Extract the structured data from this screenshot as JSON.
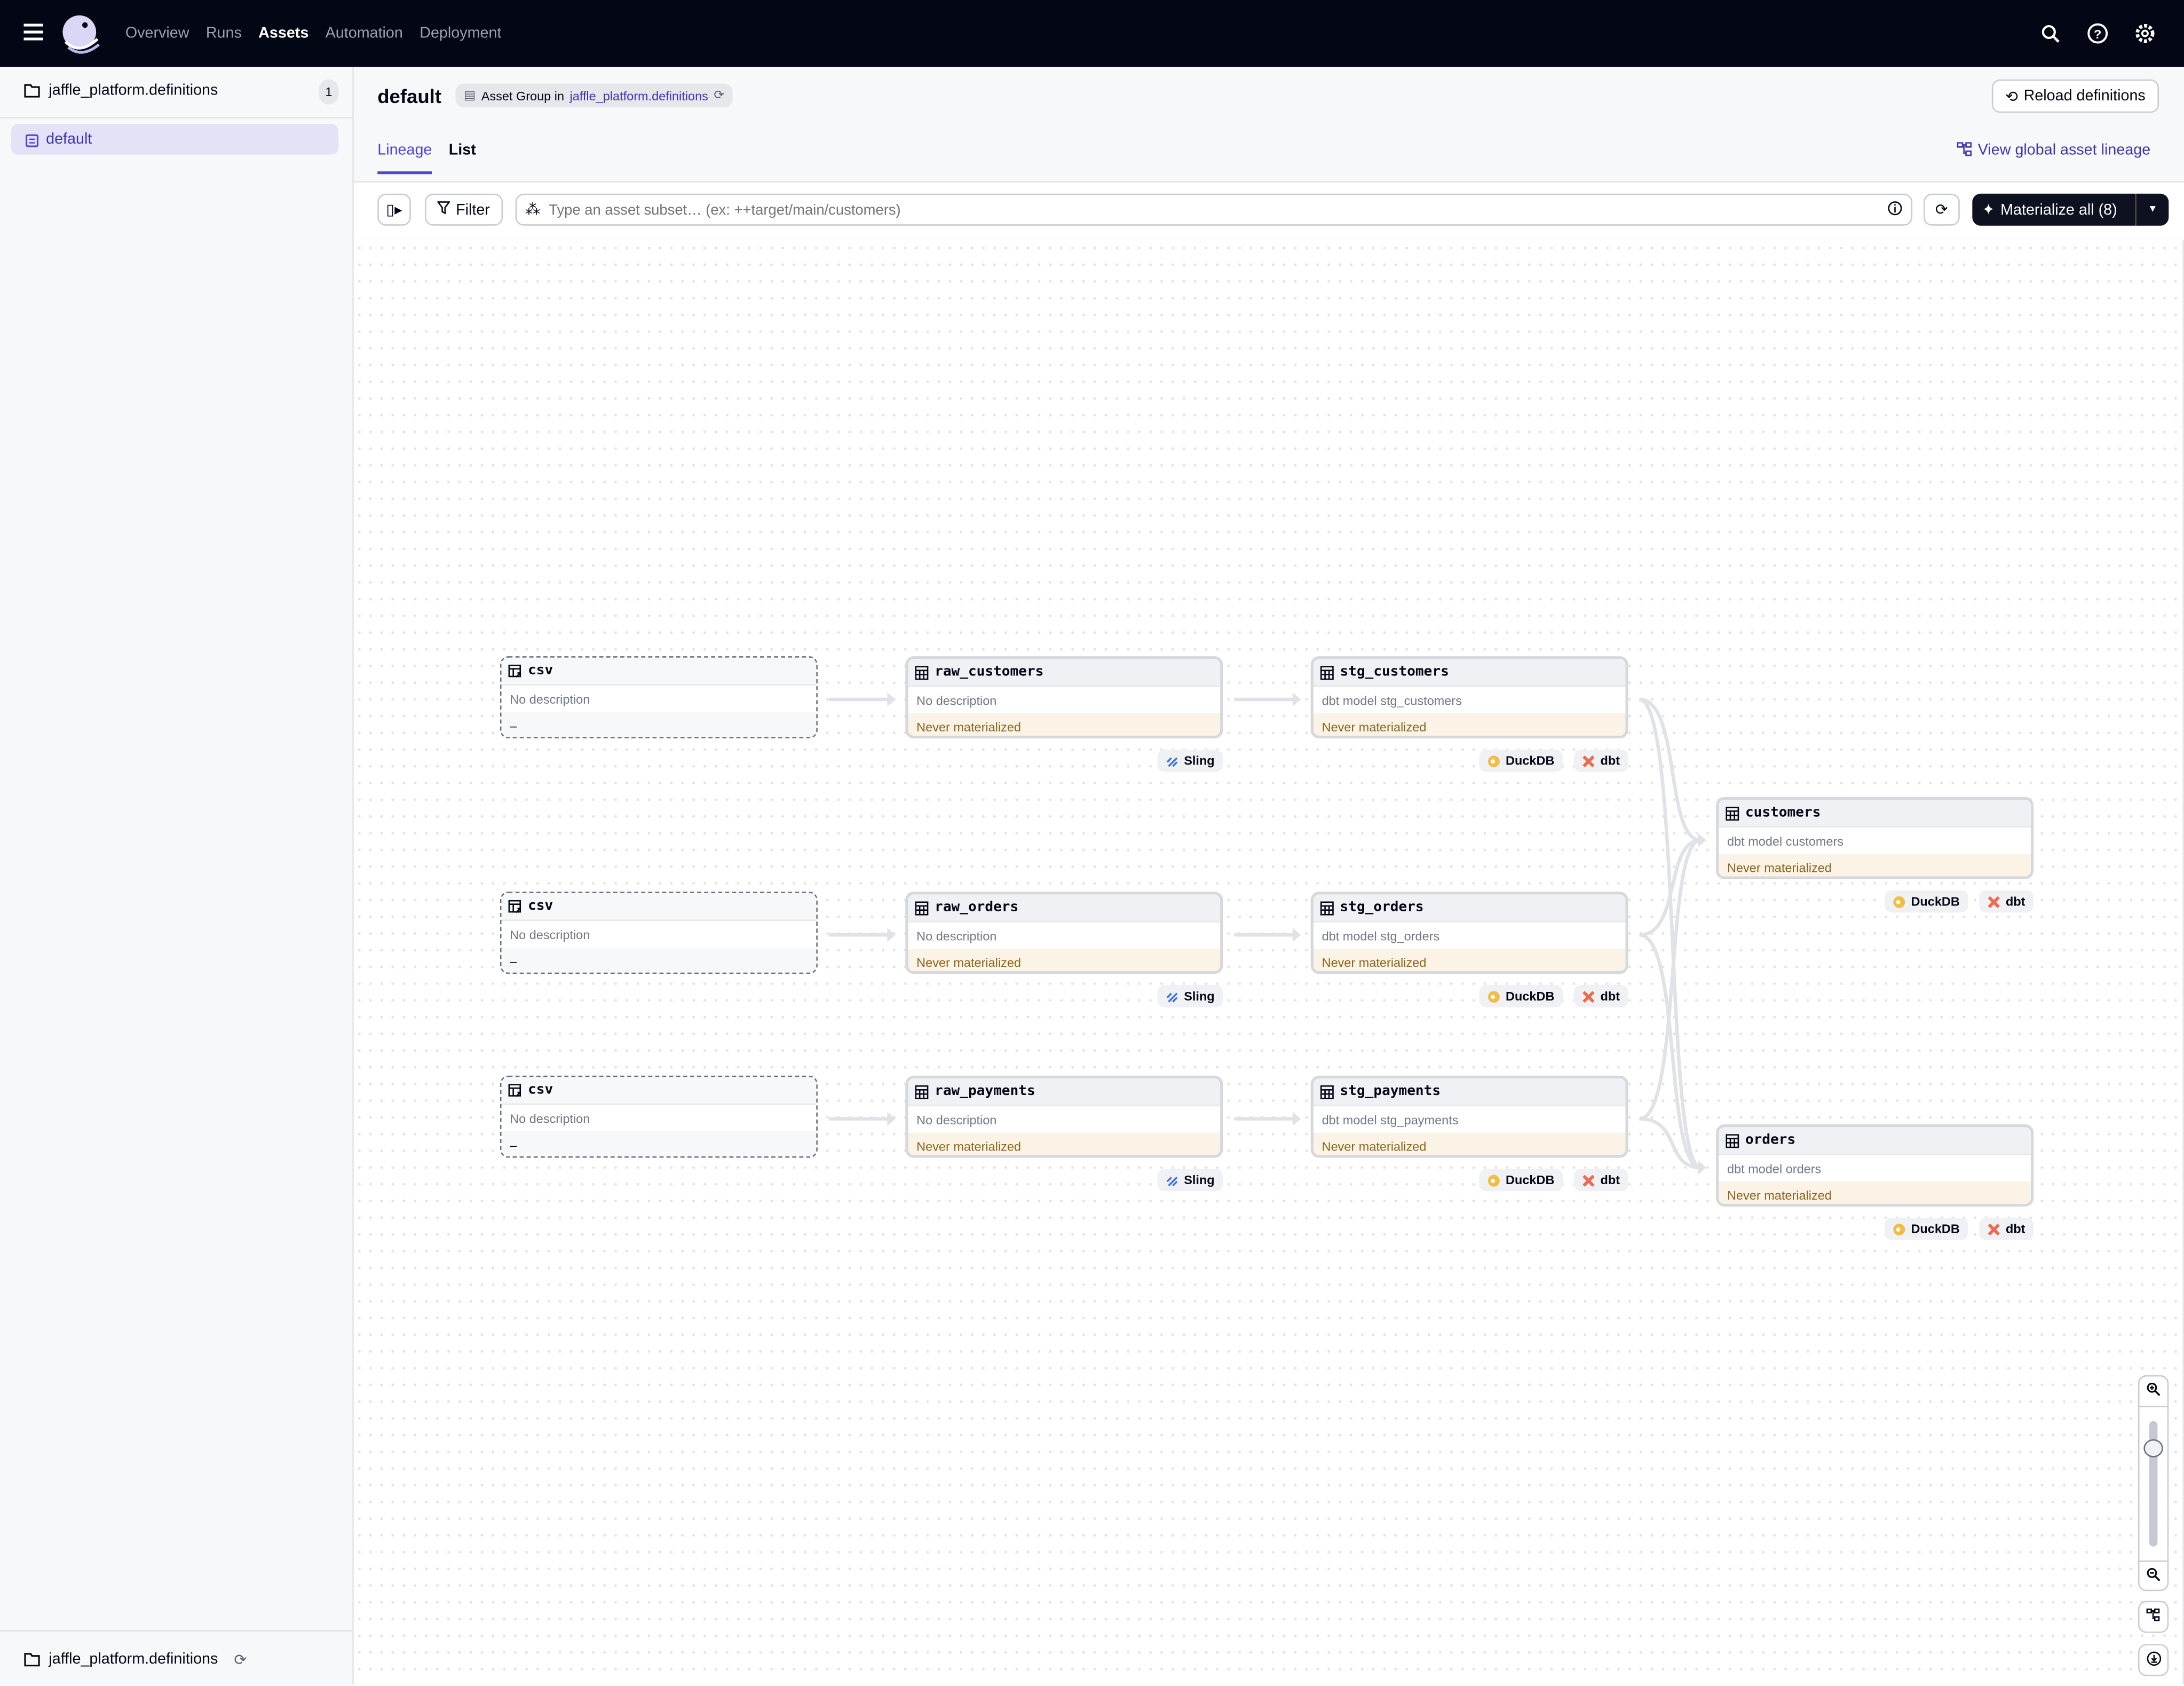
{
  "topbar": {
    "nav": [
      {
        "label": "Overview",
        "active": false
      },
      {
        "label": "Runs",
        "active": false
      },
      {
        "label": "Assets",
        "active": true
      },
      {
        "label": "Automation",
        "active": false
      },
      {
        "label": "Deployment",
        "active": false
      }
    ]
  },
  "sidebar": {
    "location_name": "jaffle_platform.definitions",
    "location_count": "1",
    "groups": [
      {
        "label": "default",
        "selected": true
      }
    ],
    "footer_location": "jaffle_platform.definitions"
  },
  "header": {
    "title": "default",
    "badge_prefix": "Asset Group in",
    "badge_link": "jaffle_platform.definitions",
    "reload_label": "Reload definitions",
    "tabs": [
      {
        "label": "Lineage",
        "active": true
      },
      {
        "label": "List",
        "active": false
      }
    ],
    "global_lineage_label": "View global asset lineage"
  },
  "toolbar": {
    "filter_label": "Filter",
    "search_placeholder": "Type an asset subset… (ex: ++target/main/customers)",
    "materialize_label": "Materialize all (8)"
  },
  "colors": {
    "accent": "#4f43dd",
    "topbar": "#030615",
    "never_materialized": "#8a6520",
    "duckdb": "#f2bd45",
    "dbt": "#ec6b4f",
    "sling": "#3b6ee8"
  },
  "graph": {
    "nodes": [
      {
        "id": "csv1",
        "name": "csv",
        "description": "No description",
        "status": "–",
        "kind": "source",
        "badges": []
      },
      {
        "id": "csv2",
        "name": "csv",
        "description": "No description",
        "status": "–",
        "kind": "source",
        "badges": []
      },
      {
        "id": "csv3",
        "name": "csv",
        "description": "No description",
        "status": "–",
        "kind": "source",
        "badges": []
      },
      {
        "id": "raw_customers",
        "name": "raw_customers",
        "description": "No description",
        "status": "Never materialized",
        "kind": "asset",
        "badges": [
          "Sling"
        ]
      },
      {
        "id": "raw_orders",
        "name": "raw_orders",
        "description": "No description",
        "status": "Never materialized",
        "kind": "asset",
        "badges": [
          "Sling"
        ]
      },
      {
        "id": "raw_payments",
        "name": "raw_payments",
        "description": "No description",
        "status": "Never materialized",
        "kind": "asset",
        "badges": [
          "Sling"
        ]
      },
      {
        "id": "stg_customers",
        "name": "stg_customers",
        "description": "dbt model stg_customers",
        "status": "Never materialized",
        "kind": "asset",
        "badges": [
          "DuckDB",
          "dbt"
        ]
      },
      {
        "id": "stg_orders",
        "name": "stg_orders",
        "description": "dbt model stg_orders",
        "status": "Never materialized",
        "kind": "asset",
        "badges": [
          "DuckDB",
          "dbt"
        ]
      },
      {
        "id": "stg_payments",
        "name": "stg_payments",
        "description": "dbt model stg_payments",
        "status": "Never materialized",
        "kind": "asset",
        "badges": [
          "DuckDB",
          "dbt"
        ]
      },
      {
        "id": "customers",
        "name": "customers",
        "description": "dbt model customers",
        "status": "Never materialized",
        "kind": "asset",
        "badges": [
          "DuckDB",
          "dbt"
        ]
      },
      {
        "id": "orders",
        "name": "orders",
        "description": "dbt model orders",
        "status": "Never materialized",
        "kind": "asset",
        "badges": [
          "DuckDB",
          "dbt"
        ]
      }
    ],
    "edges": [
      [
        "csv1",
        "raw_customers"
      ],
      [
        "csv2",
        "raw_orders"
      ],
      [
        "csv3",
        "raw_payments"
      ],
      [
        "raw_customers",
        "stg_customers"
      ],
      [
        "raw_orders",
        "stg_orders"
      ],
      [
        "raw_payments",
        "stg_payments"
      ],
      [
        "stg_customers",
        "customers"
      ],
      [
        "stg_orders",
        "customers"
      ],
      [
        "stg_payments",
        "customers"
      ],
      [
        "stg_customers",
        "orders"
      ],
      [
        "stg_orders",
        "orders"
      ],
      [
        "stg_payments",
        "orders"
      ]
    ],
    "zoom_level": 0.2
  }
}
